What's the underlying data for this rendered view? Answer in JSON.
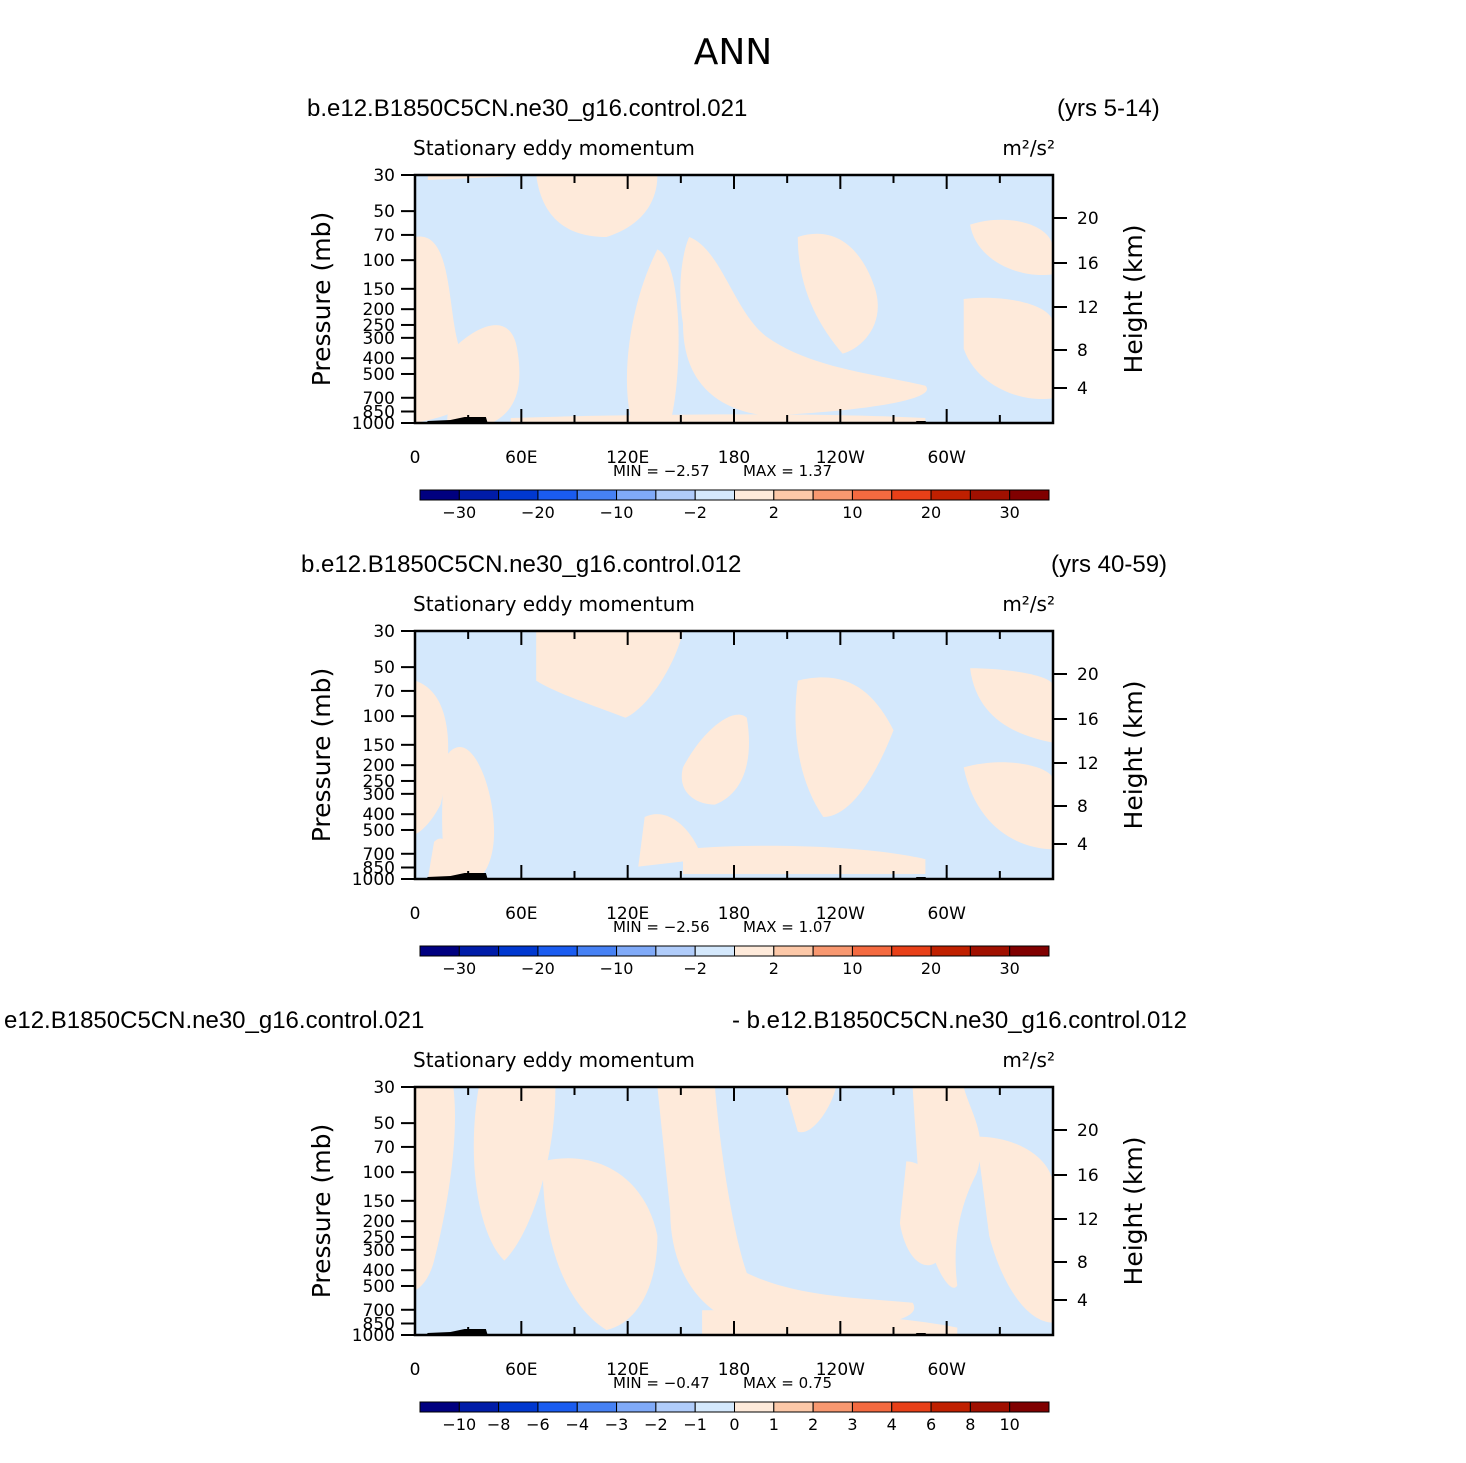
{
  "title": "ANN",
  "panels": [
    {
      "case_left": "b.e12.B1850C5CN.ne30_g16.control.021",
      "case_right": "",
      "years": "(yrs 5-14)",
      "variable": "Stationary eddy momentum",
      "units": "m²/s²",
      "min_text": "MIN =   −2.57",
      "max_text": "MAX =    1.37",
      "colorbar_labels": [
        "−30",
        "−20",
        "−10",
        "−2",
        "2",
        "10",
        "20",
        "30"
      ]
    },
    {
      "case_left": "b.e12.B1850C5CN.ne30_g16.control.012",
      "case_right": "",
      "years": "(yrs 40-59)",
      "variable": "Stationary eddy momentum",
      "units": "m²/s²",
      "min_text": "MIN =   −2.56",
      "max_text": "MAX =    1.07",
      "colorbar_labels": [
        "−30",
        "−20",
        "−10",
        "−2",
        "2",
        "10",
        "20",
        "30"
      ]
    },
    {
      "case_left": "e12.B1850C5CN.ne30_g16.control.021",
      "case_right": "- b.e12.B1850C5CN.ne30_g16.control.012",
      "years": "",
      "variable": "Stationary eddy momentum",
      "units": "m²/s²",
      "min_text": "MIN =   −0.47",
      "max_text": "MAX =    0.75",
      "colorbar_labels": [
        "−10",
        "−8",
        "−6",
        "−4",
        "−3",
        "−2",
        "−1",
        "0",
        "1",
        "2",
        "3",
        "4",
        "6",
        "8",
        "10"
      ]
    }
  ],
  "chart_data": {
    "type": "heatmap",
    "x_axis": {
      "label": "",
      "ticks": [
        "0",
        "60E",
        "120E",
        "180",
        "120W",
        "60W"
      ],
      "range_deg": [
        0,
        360
      ]
    },
    "y_axis_left": {
      "label": "Pressure (mb)",
      "scale": "log",
      "ticks": [
        "30",
        "50",
        "70",
        "100",
        "150",
        "200",
        "250",
        "300",
        "400",
        "500",
        "700",
        "850",
        "1000"
      ],
      "range_mb": [
        1000,
        30
      ]
    },
    "y_axis_right": {
      "label": "Height (km)",
      "ticks": [
        "4",
        "8",
        "12",
        "16",
        "20"
      ]
    },
    "colors": {
      "negative_fill": "#d4e8fc",
      "positive_fill": "#feeada",
      "terrain": "#000000",
      "colorbar_full": [
        "#000080",
        "#001ca8",
        "#0038d0",
        "#1a5cf0",
        "#4681f4",
        "#80aaf8",
        "#b0ccfa",
        "#d4e8fc",
        "#feeada",
        "#fcc8a8",
        "#f89870",
        "#f46a40",
        "#e84018",
        "#c02000",
        "#a01000",
        "#800000"
      ],
      "colorbar_diff": [
        "#000080",
        "#001ca8",
        "#0038d0",
        "#1a5cf0",
        "#4681f4",
        "#80aaf8",
        "#b0ccfa",
        "#d4e8fc",
        "#feeada",
        "#fcc8a8",
        "#f89870",
        "#f46a40",
        "#e84018",
        "#c02000",
        "#a01000",
        "#800000"
      ]
    },
    "panels": [
      {
        "min": -2.57,
        "max": 1.37,
        "levels": [
          -30,
          -20,
          -10,
          -2,
          2,
          10,
          20,
          30
        ]
      },
      {
        "min": -2.56,
        "max": 1.07,
        "levels": [
          -30,
          -20,
          -10,
          -2,
          2,
          10,
          20,
          30
        ]
      },
      {
        "min": -0.47,
        "max": 0.75,
        "levels": [
          -10,
          -8,
          -6,
          -4,
          -3,
          -2,
          -1,
          0,
          1,
          2,
          3,
          4,
          6,
          8,
          10
        ]
      }
    ]
  }
}
